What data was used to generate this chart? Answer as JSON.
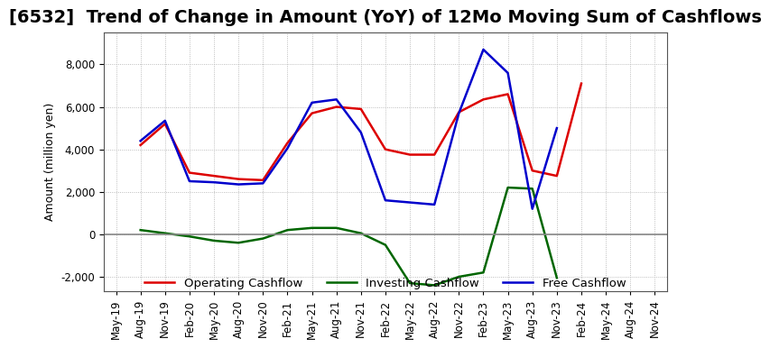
{
  "title": "[6532]  Trend of Change in Amount (YoY) of 12Mo Moving Sum of Cashflows",
  "ylabel": "Amount (million yen)",
  "ylim": [
    -2700,
    9500
  ],
  "yticks": [
    -2000,
    0,
    2000,
    4000,
    6000,
    8000
  ],
  "legend_labels": [
    "Operating Cashflow",
    "Investing Cashflow",
    "Free Cashflow"
  ],
  "legend_colors": [
    "#dd0000",
    "#006600",
    "#0000cc"
  ],
  "x_labels": [
    "May-19",
    "Aug-19",
    "Nov-19",
    "Feb-20",
    "May-20",
    "Aug-20",
    "Nov-20",
    "Feb-21",
    "May-21",
    "Aug-21",
    "Nov-21",
    "Feb-22",
    "May-22",
    "Aug-22",
    "Nov-22",
    "Feb-23",
    "May-23",
    "Aug-23",
    "Nov-23",
    "Feb-24",
    "May-24",
    "Aug-24",
    "Nov-24"
  ],
  "operating": [
    null,
    4200,
    5200,
    2900,
    2750,
    2600,
    2550,
    4300,
    5700,
    6000,
    5900,
    4000,
    3750,
    3750,
    5750,
    6350,
    6600,
    3000,
    2750,
    7100,
    null,
    null,
    null
  ],
  "investing": [
    null,
    200,
    50,
    -100,
    -300,
    -400,
    -200,
    200,
    300,
    300,
    50,
    -500,
    -2300,
    -2400,
    -2000,
    -1800,
    2200,
    2150,
    -2050,
    null,
    null,
    null,
    null
  ],
  "free": [
    null,
    4400,
    5350,
    2500,
    2450,
    2350,
    2400,
    4050,
    6200,
    6350,
    4800,
    1600,
    1500,
    1400,
    5700,
    8700,
    7600,
    1200,
    5000,
    null,
    null,
    null,
    null
  ],
  "grid_color": "#aaaaaa",
  "bg_color": "#ffffff",
  "title_fontsize": 14,
  "axis_fontsize": 9,
  "tick_fontsize": 8.5
}
